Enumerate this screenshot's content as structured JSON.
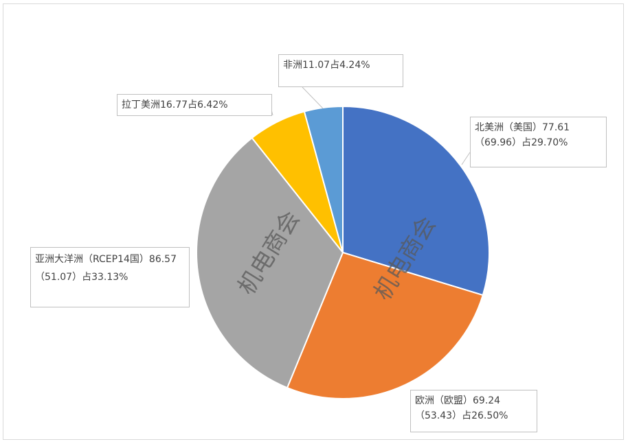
{
  "chart_data": {
    "type": "pie",
    "slices": [
      {
        "label": "北美洲（美国）77.61（69.96）占29.70%",
        "value": 29.7,
        "color": "#4472C4"
      },
      {
        "label": "欧洲（欧盟）69.24（53.43）占26.50%",
        "value": 26.5,
        "color": "#ED7D31"
      },
      {
        "label": "亚洲大洋洲（RCEP14国）86.57（51.07）占33.13%",
        "value": 33.13,
        "color": "#A5A5A5"
      },
      {
        "label": "拉丁美洲16.77占6.42%",
        "value": 6.42,
        "color": "#FFC000"
      },
      {
        "label": "非洲11.07占4.24%",
        "value": 4.24,
        "color": "#5B9BD5"
      }
    ],
    "start_angle_deg": 0,
    "direction": "clockwise"
  },
  "watermark": "机电商会"
}
